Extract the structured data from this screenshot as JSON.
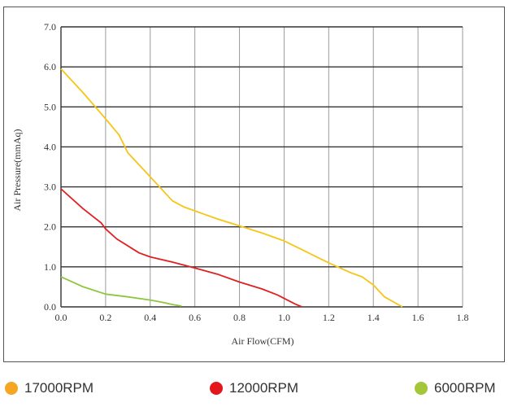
{
  "chart_data": {
    "type": "line",
    "title": "",
    "xlabel": "Air Flow(CFM)",
    "ylabel": "Air Pressure(mmAq)",
    "xlim": [
      0,
      1.8
    ],
    "ylim": [
      0,
      7.0
    ],
    "x_ticks": [
      "0.0",
      "0.2",
      "0.4",
      "0.6",
      "0.8",
      "1.0",
      "1.2",
      "1.4",
      "1.6",
      "1.8"
    ],
    "y_ticks": [
      "0.0",
      "1.0",
      "2.0",
      "3.0",
      "4.0",
      "5.0",
      "6.0",
      "7.0"
    ],
    "grid": true,
    "legend_position": "bottom",
    "series": [
      {
        "name": "17000RPM",
        "color": "#f5c518",
        "points": [
          [
            0.0,
            5.95
          ],
          [
            0.1,
            5.35
          ],
          [
            0.2,
            4.7
          ],
          [
            0.26,
            4.3
          ],
          [
            0.3,
            3.85
          ],
          [
            0.4,
            3.25
          ],
          [
            0.5,
            2.65
          ],
          [
            0.55,
            2.5
          ],
          [
            0.7,
            2.2
          ],
          [
            0.9,
            1.85
          ],
          [
            1.0,
            1.65
          ],
          [
            1.2,
            1.1
          ],
          [
            1.3,
            0.85
          ],
          [
            1.35,
            0.75
          ],
          [
            1.4,
            0.55
          ],
          [
            1.45,
            0.25
          ],
          [
            1.53,
            0.0
          ]
        ]
      },
      {
        "name": "12000RPM",
        "color": "#e02020",
        "points": [
          [
            0.0,
            2.95
          ],
          [
            0.1,
            2.45
          ],
          [
            0.18,
            2.1
          ],
          [
            0.2,
            1.95
          ],
          [
            0.25,
            1.7
          ],
          [
            0.35,
            1.35
          ],
          [
            0.4,
            1.25
          ],
          [
            0.5,
            1.12
          ],
          [
            0.6,
            0.97
          ],
          [
            0.7,
            0.82
          ],
          [
            0.8,
            0.62
          ],
          [
            0.9,
            0.45
          ],
          [
            0.97,
            0.3
          ],
          [
            1.05,
            0.07
          ],
          [
            1.08,
            0.0
          ]
        ]
      },
      {
        "name": "6000RPM",
        "color": "#8fc63e",
        "points": [
          [
            0.0,
            0.75
          ],
          [
            0.1,
            0.5
          ],
          [
            0.2,
            0.32
          ],
          [
            0.3,
            0.25
          ],
          [
            0.4,
            0.17
          ],
          [
            0.45,
            0.12
          ],
          [
            0.5,
            0.06
          ],
          [
            0.54,
            0.02
          ]
        ]
      }
    ]
  },
  "legend": {
    "items": [
      {
        "label": "17000RPM",
        "color": "#f5a623"
      },
      {
        "label": "12000RPM",
        "color": "#e3161c"
      },
      {
        "label": "6000RPM",
        "color": "#a4c639"
      }
    ]
  }
}
